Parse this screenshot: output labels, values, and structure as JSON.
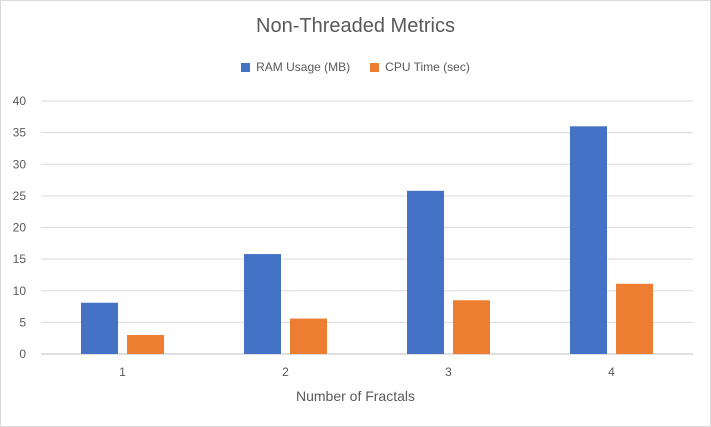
{
  "chart_data": {
    "type": "bar",
    "title": "Non-Threaded Metrics",
    "xlabel": "Number of Fractals",
    "ylabel": "",
    "categories": [
      "1",
      "2",
      "3",
      "4"
    ],
    "series": [
      {
        "name": "RAM Usage (MB)",
        "color": "#4472c4",
        "values": [
          8.1,
          15.8,
          25.8,
          36.0
        ]
      },
      {
        "name": "CPU Time (sec)",
        "color": "#ed7d31",
        "values": [
          3.0,
          5.6,
          8.5,
          11.1
        ]
      }
    ],
    "ylim": [
      0,
      40
    ],
    "yticks": [
      0,
      5,
      10,
      15,
      20,
      25,
      30,
      35,
      40
    ],
    "grid": true,
    "legend_position": "top"
  }
}
